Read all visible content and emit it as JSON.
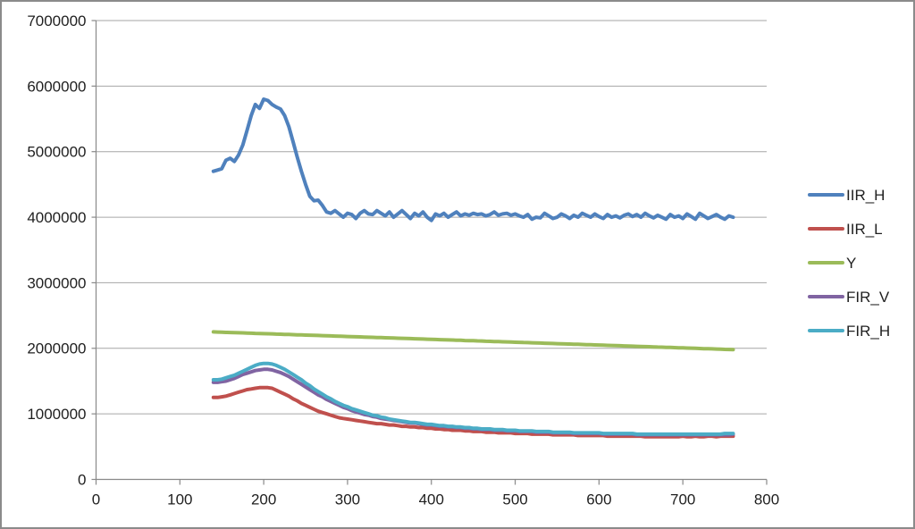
{
  "chart_data": {
    "type": "line",
    "title": "",
    "xlabel": "",
    "ylabel": "",
    "xlim": [
      0,
      800
    ],
    "ylim": [
      0,
      7000000
    ],
    "xticks": [
      0,
      100,
      200,
      300,
      400,
      500,
      600,
      700,
      800
    ],
    "yticks": [
      0,
      1000000,
      2000000,
      3000000,
      4000000,
      5000000,
      6000000,
      7000000
    ],
    "grid": "horizontal",
    "legend_position": "right",
    "x_start": 140,
    "x_step": 5,
    "series": [
      {
        "name": "IIR_H",
        "color": "#4F81BD",
        "values": [
          4700000,
          4720000,
          4740000,
          4870000,
          4900000,
          4850000,
          4950000,
          5100000,
          5320000,
          5550000,
          5720000,
          5660000,
          5800000,
          5780000,
          5720000,
          5680000,
          5650000,
          5550000,
          5380000,
          5150000,
          4920000,
          4700000,
          4500000,
          4320000,
          4250000,
          4260000,
          4180000,
          4080000,
          4060000,
          4100000,
          4050000,
          4000000,
          4060000,
          4040000,
          3980000,
          4060000,
          4100000,
          4050000,
          4040000,
          4100000,
          4060000,
          4020000,
          4080000,
          4000000,
          4050000,
          4100000,
          4040000,
          3980000,
          4060000,
          4020000,
          4080000,
          4000000,
          3950000,
          4050000,
          4020000,
          4060000,
          4000000,
          4040000,
          4080000,
          4020000,
          4050000,
          4030000,
          4060000,
          4040000,
          4050000,
          4020000,
          4040000,
          4080000,
          4030000,
          4050000,
          4060000,
          4030000,
          4050000,
          4020000,
          4000000,
          4040000,
          3970000,
          4000000,
          3990000,
          4060000,
          4020000,
          3980000,
          4000000,
          4050000,
          4020000,
          3980000,
          4030000,
          4000000,
          4060000,
          4030000,
          4000000,
          4050000,
          4010000,
          3980000,
          4040000,
          4000000,
          4020000,
          3990000,
          4030000,
          4050000,
          4010000,
          4040000,
          4000000,
          4060000,
          4020000,
          3990000,
          4030000,
          4000000,
          3970000,
          4040000,
          4000000,
          4020000,
          3980000,
          4050000,
          4010000,
          3970000,
          4060000,
          4020000,
          3980000,
          4010000,
          4040000,
          4000000,
          3970000,
          4020000,
          4000000
        ]
      },
      {
        "name": "IIR_L",
        "color": "#C0504D",
        "values": [
          1250000,
          1250000,
          1260000,
          1270000,
          1290000,
          1310000,
          1330000,
          1350000,
          1370000,
          1380000,
          1390000,
          1400000,
          1400000,
          1400000,
          1390000,
          1360000,
          1330000,
          1300000,
          1270000,
          1230000,
          1200000,
          1160000,
          1130000,
          1100000,
          1070000,
          1040000,
          1020000,
          1000000,
          980000,
          960000,
          940000,
          930000,
          920000,
          910000,
          900000,
          890000,
          880000,
          870000,
          860000,
          850000,
          850000,
          840000,
          830000,
          830000,
          820000,
          810000,
          810000,
          800000,
          800000,
          790000,
          790000,
          780000,
          780000,
          770000,
          770000,
          760000,
          760000,
          750000,
          750000,
          750000,
          740000,
          740000,
          730000,
          730000,
          730000,
          720000,
          720000,
          720000,
          710000,
          710000,
          710000,
          710000,
          700000,
          700000,
          700000,
          700000,
          690000,
          690000,
          690000,
          690000,
          690000,
          680000,
          680000,
          680000,
          680000,
          680000,
          680000,
          670000,
          670000,
          670000,
          670000,
          670000,
          670000,
          670000,
          660000,
          660000,
          660000,
          660000,
          660000,
          660000,
          660000,
          660000,
          660000,
          650000,
          650000,
          650000,
          650000,
          650000,
          650000,
          650000,
          650000,
          650000,
          660000,
          650000,
          650000,
          660000,
          650000,
          650000,
          660000,
          660000,
          650000,
          660000,
          660000,
          660000,
          660000
        ]
      },
      {
        "name": "Y",
        "color": "#9BBB59",
        "values": [
          2250000,
          2248000,
          2246000,
          2243000,
          2241000,
          2239000,
          2237000,
          2235000,
          2233000,
          2230000,
          2228000,
          2226000,
          2224000,
          2222000,
          2220000,
          2217000,
          2215000,
          2213000,
          2211000,
          2209000,
          2206000,
          2204000,
          2202000,
          2200000,
          2198000,
          2196000,
          2193000,
          2191000,
          2189000,
          2187000,
          2185000,
          2183000,
          2180000,
          2178000,
          2176000,
          2174000,
          2172000,
          2169000,
          2167000,
          2165000,
          2163000,
          2161000,
          2159000,
          2156000,
          2154000,
          2152000,
          2150000,
          2148000,
          2146000,
          2143000,
          2141000,
          2139000,
          2137000,
          2135000,
          2132000,
          2130000,
          2128000,
          2126000,
          2124000,
          2122000,
          2119000,
          2117000,
          2115000,
          2113000,
          2111000,
          2108000,
          2106000,
          2104000,
          2102000,
          2100000,
          2098000,
          2095000,
          2093000,
          2091000,
          2089000,
          2087000,
          2085000,
          2082000,
          2080000,
          2078000,
          2076000,
          2074000,
          2071000,
          2069000,
          2067000,
          2065000,
          2063000,
          2061000,
          2058000,
          2056000,
          2054000,
          2052000,
          2050000,
          2048000,
          2045000,
          2043000,
          2041000,
          2039000,
          2037000,
          2034000,
          2032000,
          2030000,
          2028000,
          2026000,
          2024000,
          2021000,
          2019000,
          2017000,
          2015000,
          2013000,
          2011000,
          2008000,
          2006000,
          2004000,
          2002000,
          2000000,
          1997000,
          1995000,
          1993000,
          1991000,
          1989000,
          1987000,
          1984000,
          1982000,
          1980000
        ]
      },
      {
        "name": "FIR_V",
        "color": "#8064A2",
        "values": [
          1480000,
          1480000,
          1490000,
          1500000,
          1520000,
          1540000,
          1570000,
          1600000,
          1620000,
          1640000,
          1660000,
          1670000,
          1680000,
          1680000,
          1670000,
          1650000,
          1630000,
          1600000,
          1570000,
          1530000,
          1490000,
          1450000,
          1410000,
          1370000,
          1330000,
          1290000,
          1260000,
          1220000,
          1190000,
          1160000,
          1130000,
          1100000,
          1080000,
          1050000,
          1030000,
          1010000,
          990000,
          980000,
          960000,
          950000,
          930000,
          920000,
          910000,
          900000,
          890000,
          880000,
          870000,
          860000,
          860000,
          850000,
          840000,
          830000,
          830000,
          820000,
          810000,
          810000,
          800000,
          800000,
          790000,
          790000,
          780000,
          780000,
          770000,
          770000,
          760000,
          760000,
          760000,
          750000,
          750000,
          750000,
          740000,
          740000,
          740000,
          730000,
          730000,
          730000,
          730000,
          720000,
          720000,
          720000,
          720000,
          710000,
          710000,
          710000,
          710000,
          710000,
          700000,
          700000,
          700000,
          700000,
          700000,
          700000,
          700000,
          690000,
          690000,
          690000,
          690000,
          690000,
          690000,
          690000,
          690000,
          680000,
          680000,
          680000,
          680000,
          680000,
          680000,
          680000,
          680000,
          680000,
          680000,
          680000,
          680000,
          680000,
          680000,
          680000,
          680000,
          680000,
          680000,
          680000,
          680000,
          680000,
          680000,
          680000,
          690000
        ]
      },
      {
        "name": "FIR_H",
        "color": "#4BACC6",
        "values": [
          1520000,
          1520000,
          1530000,
          1550000,
          1570000,
          1590000,
          1620000,
          1650000,
          1680000,
          1710000,
          1740000,
          1760000,
          1770000,
          1770000,
          1760000,
          1740000,
          1710000,
          1680000,
          1640000,
          1600000,
          1560000,
          1520000,
          1470000,
          1430000,
          1380000,
          1340000,
          1300000,
          1260000,
          1230000,
          1190000,
          1160000,
          1130000,
          1110000,
          1080000,
          1060000,
          1040000,
          1020000,
          1000000,
          980000,
          970000,
          950000,
          940000,
          920000,
          910000,
          900000,
          890000,
          880000,
          870000,
          870000,
          860000,
          850000,
          840000,
          840000,
          830000,
          820000,
          820000,
          810000,
          810000,
          800000,
          800000,
          790000,
          790000,
          780000,
          780000,
          770000,
          770000,
          770000,
          760000,
          760000,
          760000,
          750000,
          750000,
          750000,
          740000,
          740000,
          740000,
          740000,
          730000,
          730000,
          730000,
          730000,
          720000,
          720000,
          720000,
          720000,
          720000,
          710000,
          710000,
          710000,
          710000,
          710000,
          710000,
          710000,
          700000,
          700000,
          700000,
          700000,
          700000,
          700000,
          700000,
          700000,
          690000,
          690000,
          690000,
          690000,
          690000,
          690000,
          690000,
          690000,
          690000,
          690000,
          690000,
          690000,
          690000,
          690000,
          690000,
          690000,
          690000,
          690000,
          690000,
          690000,
          690000,
          700000,
          700000,
          700000
        ]
      }
    ]
  },
  "colors": {
    "background": "#FFFFFF",
    "frame_border": "#8B8B8B",
    "gridline": "#A6A6A6",
    "axis": "#898989",
    "tick_text": "#1F1F1F"
  }
}
